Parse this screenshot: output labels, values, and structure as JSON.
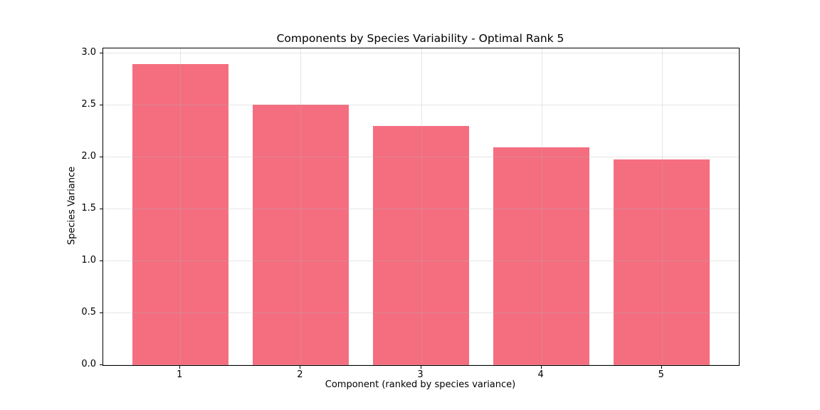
{
  "chart_data": {
    "type": "bar",
    "title": "Components by Species Variability - Optimal Rank 5",
    "xlabel": "Component (ranked by species variance)",
    "ylabel": "Species Variance",
    "categories": [
      "1",
      "2",
      "3",
      "4",
      "5"
    ],
    "x": [
      1,
      2,
      3,
      4,
      5
    ],
    "values": [
      2.9,
      2.51,
      2.3,
      2.1,
      1.98
    ],
    "ylim": [
      0,
      3.05
    ],
    "xlim": [
      0.36,
      5.64
    ],
    "yticks": [
      0.0,
      0.5,
      1.0,
      1.5,
      2.0,
      2.5,
      3.0
    ],
    "ytick_labels": [
      "0.0",
      "0.5",
      "1.0",
      "1.5",
      "2.0",
      "2.5",
      "3.0"
    ],
    "bar_width": 0.8,
    "bar_color": "#f56e80",
    "grid": true,
    "legend": "none",
    "background": "#ffffff"
  }
}
